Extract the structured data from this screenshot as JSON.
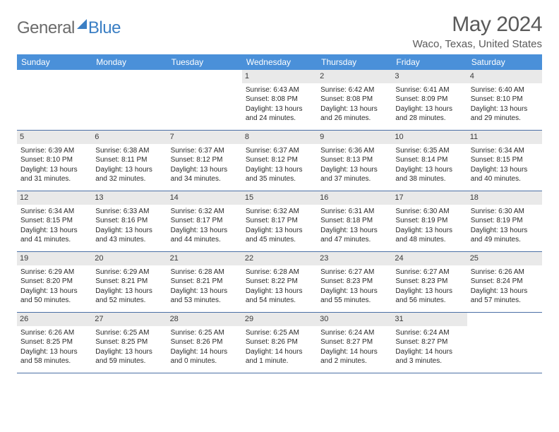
{
  "brand": {
    "part1": "General",
    "part2": "Blue"
  },
  "title": "May 2024",
  "location": "Waco, Texas, United States",
  "colors": {
    "header_bg": "#4a90d9",
    "header_text": "#ffffff",
    "border": "#4a6fa5",
    "daynum_bg": "#e9e9e9",
    "text": "#2a2a2a",
    "title_text": "#5a5a5a",
    "logo_gray": "#6b6b6b",
    "logo_blue": "#3b7fc4"
  },
  "weekdays": [
    "Sunday",
    "Monday",
    "Tuesday",
    "Wednesday",
    "Thursday",
    "Friday",
    "Saturday"
  ],
  "weeks": [
    [
      {
        "n": "",
        "sr": "",
        "ss": "",
        "dl": ""
      },
      {
        "n": "",
        "sr": "",
        "ss": "",
        "dl": ""
      },
      {
        "n": "",
        "sr": "",
        "ss": "",
        "dl": ""
      },
      {
        "n": "1",
        "sr": "6:43 AM",
        "ss": "8:08 PM",
        "dl": "13 hours and 24 minutes."
      },
      {
        "n": "2",
        "sr": "6:42 AM",
        "ss": "8:08 PM",
        "dl": "13 hours and 26 minutes."
      },
      {
        "n": "3",
        "sr": "6:41 AM",
        "ss": "8:09 PM",
        "dl": "13 hours and 28 minutes."
      },
      {
        "n": "4",
        "sr": "6:40 AM",
        "ss": "8:10 PM",
        "dl": "13 hours and 29 minutes."
      }
    ],
    [
      {
        "n": "5",
        "sr": "6:39 AM",
        "ss": "8:10 PM",
        "dl": "13 hours and 31 minutes."
      },
      {
        "n": "6",
        "sr": "6:38 AM",
        "ss": "8:11 PM",
        "dl": "13 hours and 32 minutes."
      },
      {
        "n": "7",
        "sr": "6:37 AM",
        "ss": "8:12 PM",
        "dl": "13 hours and 34 minutes."
      },
      {
        "n": "8",
        "sr": "6:37 AM",
        "ss": "8:12 PM",
        "dl": "13 hours and 35 minutes."
      },
      {
        "n": "9",
        "sr": "6:36 AM",
        "ss": "8:13 PM",
        "dl": "13 hours and 37 minutes."
      },
      {
        "n": "10",
        "sr": "6:35 AM",
        "ss": "8:14 PM",
        "dl": "13 hours and 38 minutes."
      },
      {
        "n": "11",
        "sr": "6:34 AM",
        "ss": "8:15 PM",
        "dl": "13 hours and 40 minutes."
      }
    ],
    [
      {
        "n": "12",
        "sr": "6:34 AM",
        "ss": "8:15 PM",
        "dl": "13 hours and 41 minutes."
      },
      {
        "n": "13",
        "sr": "6:33 AM",
        "ss": "8:16 PM",
        "dl": "13 hours and 43 minutes."
      },
      {
        "n": "14",
        "sr": "6:32 AM",
        "ss": "8:17 PM",
        "dl": "13 hours and 44 minutes."
      },
      {
        "n": "15",
        "sr": "6:32 AM",
        "ss": "8:17 PM",
        "dl": "13 hours and 45 minutes."
      },
      {
        "n": "16",
        "sr": "6:31 AM",
        "ss": "8:18 PM",
        "dl": "13 hours and 47 minutes."
      },
      {
        "n": "17",
        "sr": "6:30 AM",
        "ss": "8:19 PM",
        "dl": "13 hours and 48 minutes."
      },
      {
        "n": "18",
        "sr": "6:30 AM",
        "ss": "8:19 PM",
        "dl": "13 hours and 49 minutes."
      }
    ],
    [
      {
        "n": "19",
        "sr": "6:29 AM",
        "ss": "8:20 PM",
        "dl": "13 hours and 50 minutes."
      },
      {
        "n": "20",
        "sr": "6:29 AM",
        "ss": "8:21 PM",
        "dl": "13 hours and 52 minutes."
      },
      {
        "n": "21",
        "sr": "6:28 AM",
        "ss": "8:21 PM",
        "dl": "13 hours and 53 minutes."
      },
      {
        "n": "22",
        "sr": "6:28 AM",
        "ss": "8:22 PM",
        "dl": "13 hours and 54 minutes."
      },
      {
        "n": "23",
        "sr": "6:27 AM",
        "ss": "8:23 PM",
        "dl": "13 hours and 55 minutes."
      },
      {
        "n": "24",
        "sr": "6:27 AM",
        "ss": "8:23 PM",
        "dl": "13 hours and 56 minutes."
      },
      {
        "n": "25",
        "sr": "6:26 AM",
        "ss": "8:24 PM",
        "dl": "13 hours and 57 minutes."
      }
    ],
    [
      {
        "n": "26",
        "sr": "6:26 AM",
        "ss": "8:25 PM",
        "dl": "13 hours and 58 minutes."
      },
      {
        "n": "27",
        "sr": "6:25 AM",
        "ss": "8:25 PM",
        "dl": "13 hours and 59 minutes."
      },
      {
        "n": "28",
        "sr": "6:25 AM",
        "ss": "8:26 PM",
        "dl": "14 hours and 0 minutes."
      },
      {
        "n": "29",
        "sr": "6:25 AM",
        "ss": "8:26 PM",
        "dl": "14 hours and 1 minute."
      },
      {
        "n": "30",
        "sr": "6:24 AM",
        "ss": "8:27 PM",
        "dl": "14 hours and 2 minutes."
      },
      {
        "n": "31",
        "sr": "6:24 AM",
        "ss": "8:27 PM",
        "dl": "14 hours and 3 minutes."
      },
      {
        "n": "",
        "sr": "",
        "ss": "",
        "dl": ""
      }
    ]
  ],
  "labels": {
    "sunrise": "Sunrise:",
    "sunset": "Sunset:",
    "daylight": "Daylight:"
  }
}
